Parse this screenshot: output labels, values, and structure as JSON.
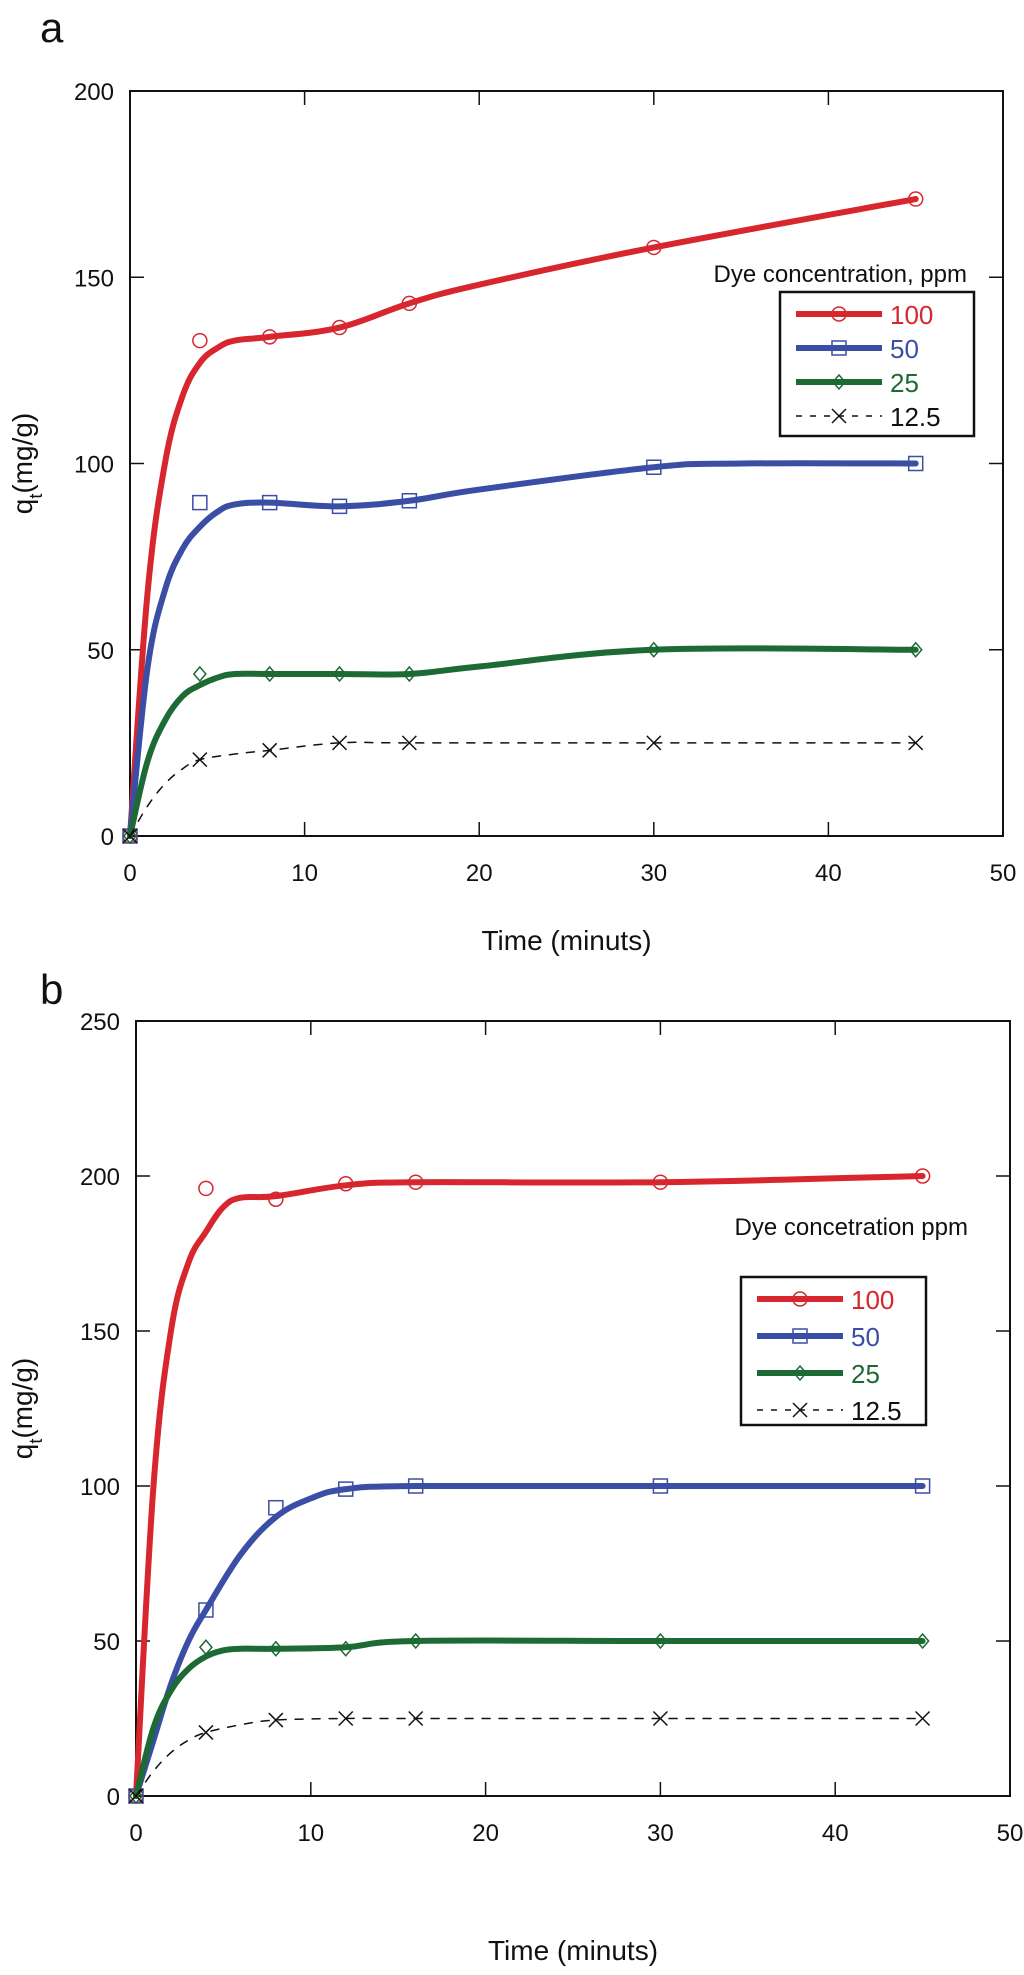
{
  "chart_data": [
    {
      "panel_label": "a",
      "type": "line",
      "xlabel": "Time (minuts)",
      "ylabel": "q",
      "ylabel_sub": "t",
      "ylabel_unit": "(mg/g)",
      "xlim": [
        0,
        50
      ],
      "ylim": [
        0,
        200
      ],
      "xticks": [
        0,
        10,
        20,
        30,
        40,
        50
      ],
      "yticks": [
        0,
        50,
        100,
        150,
        200
      ],
      "grid": false,
      "legend_title": "Dye concentration, ppm",
      "legend_position": "right",
      "series": [
        {
          "name": "100",
          "color": "#d7262e",
          "marker": "circle",
          "style": "solid",
          "points": [
            [
              0,
              0
            ],
            [
              4,
              133
            ],
            [
              8,
              134
            ],
            [
              12,
              136.5
            ],
            [
              16,
              143
            ],
            [
              30,
              158
            ],
            [
              45,
              171
            ]
          ],
          "fit": [
            [
              0,
              0
            ],
            [
              1,
              65
            ],
            [
              2,
              100
            ],
            [
              3,
              118
            ],
            [
              4,
              127
            ],
            [
              5,
              131
            ],
            [
              6,
              133
            ],
            [
              8,
              134
            ],
            [
              12,
              136.5
            ],
            [
              16,
              143
            ],
            [
              20,
              148
            ],
            [
              30,
              158
            ],
            [
              45,
              171
            ]
          ]
        },
        {
          "name": "50",
          "color": "#3a4ea5",
          "marker": "square",
          "style": "solid",
          "points": [
            [
              0,
              0
            ],
            [
              4,
              89.5
            ],
            [
              8,
              89.5
            ],
            [
              12,
              88.5
            ],
            [
              16,
              90
            ],
            [
              30,
              99
            ],
            [
              45,
              100
            ]
          ],
          "fit": [
            [
              0,
              0
            ],
            [
              1,
              45
            ],
            [
              2,
              66
            ],
            [
              3,
              77
            ],
            [
              4,
              83
            ],
            [
              5,
              87
            ],
            [
              6,
              89
            ],
            [
              8,
              89.5
            ],
            [
              12,
              88.5
            ],
            [
              16,
              90
            ],
            [
              20,
              93
            ],
            [
              30,
              99
            ],
            [
              35,
              100
            ],
            [
              45,
              100
            ]
          ]
        },
        {
          "name": "25",
          "color": "#1d6a35",
          "marker": "diamond",
          "style": "solid",
          "points": [
            [
              0,
              0
            ],
            [
              4,
              43.5
            ],
            [
              8,
              43.5
            ],
            [
              12,
              43.5
            ],
            [
              16,
              43.5
            ],
            [
              30,
              50
            ],
            [
              45,
              50
            ]
          ],
          "fit": [
            [
              0,
              0
            ],
            [
              1,
              20
            ],
            [
              2,
              31
            ],
            [
              3,
              37.5
            ],
            [
              4,
              40.5
            ],
            [
              5,
              42.5
            ],
            [
              6,
              43.5
            ],
            [
              8,
              43.5
            ],
            [
              12,
              43.5
            ],
            [
              16,
              43.5
            ],
            [
              20,
              45.5
            ],
            [
              30,
              50
            ],
            [
              45,
              50
            ]
          ]
        },
        {
          "name": "12.5",
          "color": "#111111",
          "marker": "x",
          "style": "dashed",
          "points": [
            [
              0,
              0
            ],
            [
              4,
              20.5
            ],
            [
              8,
              23
            ],
            [
              12,
              25
            ],
            [
              16,
              25
            ],
            [
              30,
              25
            ],
            [
              45,
              25
            ]
          ],
          "fit": [
            [
              0,
              0
            ],
            [
              1,
              8
            ],
            [
              2,
              14
            ],
            [
              3,
              18
            ],
            [
              4,
              20.5
            ],
            [
              6,
              22
            ],
            [
              8,
              23
            ],
            [
              12,
              25
            ],
            [
              16,
              25
            ],
            [
              30,
              25
            ],
            [
              45,
              25
            ]
          ]
        }
      ]
    },
    {
      "panel_label": "b",
      "type": "line",
      "xlabel": "Time (minuts)",
      "ylabel": "q",
      "ylabel_sub": "t",
      "ylabel_unit": "(mg/g)",
      "xlim": [
        0,
        50
      ],
      "ylim": [
        0,
        250
      ],
      "xticks": [
        0,
        10,
        20,
        30,
        40,
        50
      ],
      "yticks": [
        0,
        50,
        100,
        150,
        200,
        250
      ],
      "grid": false,
      "legend_title": "Dye concetration  ppm",
      "legend_position": "right",
      "series": [
        {
          "name": "100",
          "color": "#d7262e",
          "marker": "circle",
          "style": "solid",
          "points": [
            [
              0,
              0
            ],
            [
              4,
              196
            ],
            [
              8,
              192.5
            ],
            [
              12,
              197.5
            ],
            [
              16,
              198
            ],
            [
              30,
              198
            ],
            [
              45,
              200
            ]
          ],
          "fit": [
            [
              0,
              0
            ],
            [
              1,
              100
            ],
            [
              2,
              150
            ],
            [
              3,
              172
            ],
            [
              4,
              182
            ],
            [
              5,
              190
            ],
            [
              6,
              193
            ],
            [
              8,
              193.5
            ],
            [
              12,
              197
            ],
            [
              16,
              198
            ],
            [
              30,
              198
            ],
            [
              45,
              200
            ]
          ]
        },
        {
          "name": "50",
          "color": "#3a4ea5",
          "marker": "square",
          "style": "solid",
          "points": [
            [
              0,
              0
            ],
            [
              4,
              60
            ],
            [
              8,
              93
            ],
            [
              12,
              99
            ],
            [
              16,
              100
            ],
            [
              30,
              100
            ],
            [
              45,
              100
            ]
          ],
          "fit": [
            [
              0,
              0
            ],
            [
              1,
              18
            ],
            [
              2,
              36
            ],
            [
              3,
              50
            ],
            [
              4,
              60
            ],
            [
              6,
              78
            ],
            [
              8,
              90
            ],
            [
              10,
              96
            ],
            [
              12,
              99
            ],
            [
              16,
              100
            ],
            [
              30,
              100
            ],
            [
              45,
              100
            ]
          ]
        },
        {
          "name": "25",
          "color": "#1d6a35",
          "marker": "diamond",
          "style": "solid",
          "points": [
            [
              0,
              0
            ],
            [
              4,
              48
            ],
            [
              8,
              47.5
            ],
            [
              12,
              47.5
            ],
            [
              16,
              50
            ],
            [
              30,
              50
            ],
            [
              45,
              50
            ]
          ],
          "fit": [
            [
              0,
              0
            ],
            [
              1,
              22
            ],
            [
              2,
              34
            ],
            [
              3,
              41
            ],
            [
              4,
              45
            ],
            [
              5,
              47
            ],
            [
              6,
              47.5
            ],
            [
              8,
              47.5
            ],
            [
              12,
              48
            ],
            [
              16,
              50
            ],
            [
              30,
              50
            ],
            [
              45,
              50
            ]
          ]
        },
        {
          "name": "12.5",
          "color": "#111111",
          "marker": "x",
          "style": "dashed",
          "points": [
            [
              0,
              0
            ],
            [
              4,
              20.5
            ],
            [
              8,
              24.5
            ],
            [
              12,
              25
            ],
            [
              16,
              25
            ],
            [
              30,
              25
            ],
            [
              45,
              25
            ]
          ],
          "fit": [
            [
              0,
              0
            ],
            [
              1,
              8
            ],
            [
              2,
              14
            ],
            [
              3,
              18
            ],
            [
              4,
              20.5
            ],
            [
              6,
              23
            ],
            [
              8,
              24.5
            ],
            [
              12,
              25
            ],
            [
              16,
              25
            ],
            [
              30,
              25
            ],
            [
              45,
              25
            ]
          ]
        }
      ]
    }
  ]
}
